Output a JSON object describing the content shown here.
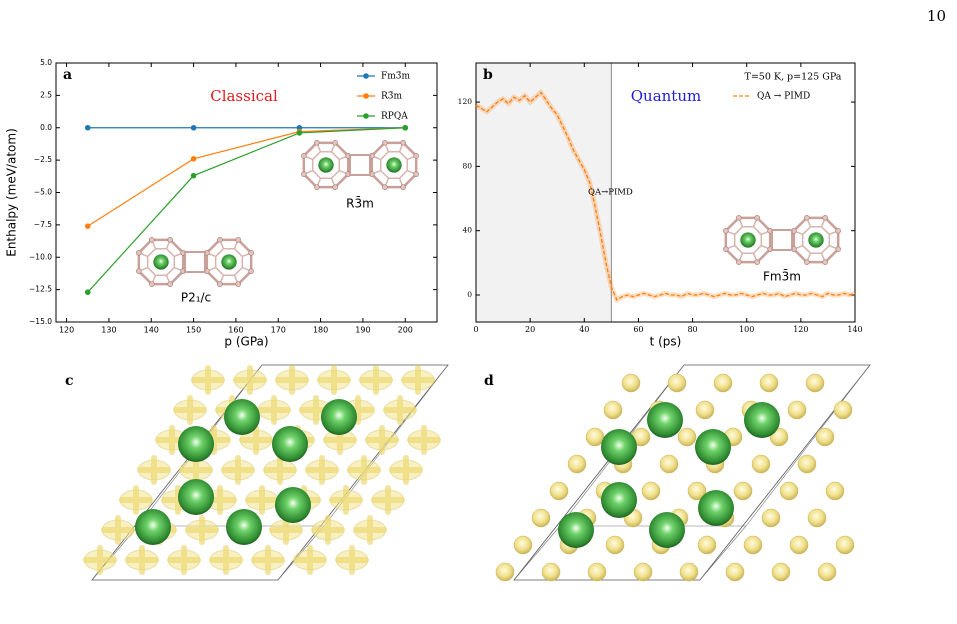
{
  "page_number": "10",
  "chart_data": [
    {
      "type": "line",
      "panel": "a",
      "annotations": [
        "Classical",
        "R3̄m",
        "P2₁/c"
      ],
      "xlabel": "p (GPa)",
      "ylabel": "Enthalpy (meV/atom)",
      "x": [
        125,
        150,
        175,
        200
      ],
      "series": [
        {
          "name": "Fm3̄m",
          "color": "#1f77b4",
          "values": [
            0,
            0,
            0,
            0
          ]
        },
        {
          "name": "R3̄m",
          "color": "#ff7f0e",
          "values": [
            -7.6,
            -2.4,
            -0.3,
            0
          ]
        },
        {
          "name": "RPQA",
          "color": "#2ca02c",
          "values": [
            -12.7,
            -3.7,
            -0.4,
            0
          ]
        }
      ],
      "markers": true,
      "xlim": [
        117.5,
        207.5
      ],
      "xticks": [
        120,
        130,
        140,
        150,
        160,
        170,
        180,
        190,
        200
      ],
      "ylim": [
        -15,
        5
      ],
      "yticks": [
        {
          "value": -15,
          "label": "−15.0"
        },
        {
          "value": -12.5,
          "label": "−12.5"
        },
        {
          "value": -10,
          "label": "−10.0"
        },
        {
          "value": -7.5,
          "label": "−7.5"
        },
        {
          "value": -5,
          "label": "−5.0"
        },
        {
          "value": -2.5,
          "label": "−2.5"
        },
        {
          "value": 0,
          "label": "0.0"
        },
        {
          "value": 2.5,
          "label": "2.5"
        },
        {
          "value": 5,
          "label": "5.0"
        }
      ],
      "legend": "upper right"
    },
    {
      "type": "line",
      "panel": "b",
      "annotations": [
        "Quantum",
        "T=50 K, p=125 GPa",
        "QA→PIMD",
        "Fm3̄m"
      ],
      "xlabel": "t (ps)",
      "x": [
        0,
        2,
        4,
        6,
        8,
        10,
        12,
        14,
        16,
        18,
        20,
        22,
        24,
        26,
        28,
        30,
        32,
        34,
        36,
        38,
        40,
        42,
        44,
        46,
        48,
        50,
        52,
        54,
        56,
        58,
        60,
        62,
        64,
        66,
        68,
        70,
        72,
        74,
        76,
        78,
        80,
        82,
        84,
        86,
        88,
        90,
        92,
        94,
        96,
        98,
        100,
        102,
        104,
        106,
        108,
        110,
        112,
        114,
        116,
        118,
        120,
        122,
        124,
        126,
        128,
        130,
        132,
        134,
        136,
        138,
        140
      ],
      "series": [
        {
          "name": "QA → PIMD",
          "color": "#ff7f0e",
          "dashed": true,
          "values": [
            118,
            116,
            114,
            117,
            120,
            122,
            119,
            123,
            121,
            124,
            120,
            123,
            126,
            121,
            116,
            112,
            105,
            98,
            90,
            84,
            78,
            70,
            55,
            38,
            20,
            5,
            -3,
            -1,
            0,
            -1,
            0,
            1,
            0,
            -1,
            0,
            1,
            0,
            0,
            -1,
            1,
            0,
            0,
            1,
            0,
            -1,
            0,
            1,
            0,
            0,
            1,
            0,
            -1,
            0,
            1,
            0,
            0,
            1,
            -1,
            0,
            1,
            0,
            0,
            1,
            0,
            -1,
            1,
            0,
            0,
            1,
            0,
            1
          ]
        }
      ],
      "shaded_xrange": [
        0,
        50
      ],
      "xlim": [
        0,
        140
      ],
      "xticks": [
        0,
        20,
        40,
        60,
        80,
        100,
        120,
        140
      ],
      "ylim": [
        -16.8,
        144.3
      ],
      "yticks": [
        0,
        40,
        80,
        120
      ],
      "legend": "upper right"
    }
  ],
  "panels": [
    {
      "label": "c"
    },
    {
      "label": "d"
    }
  ]
}
